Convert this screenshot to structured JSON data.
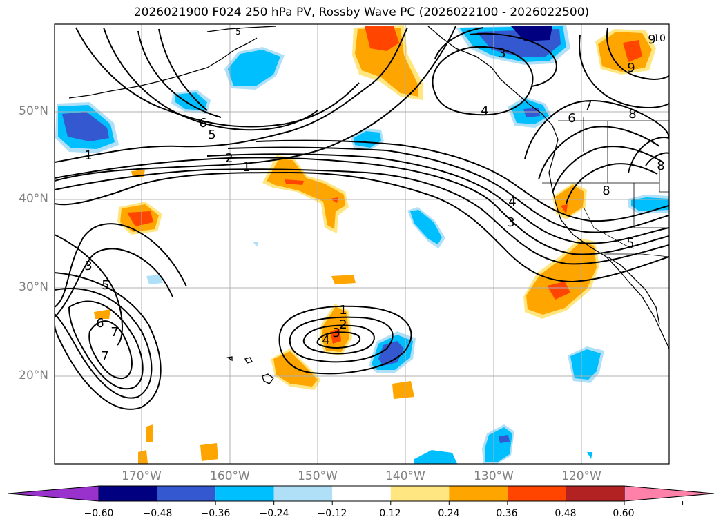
{
  "title": "2026021900 F024 250 hPa PV, Rossby Wave PC (2026022100 - 2026022500)",
  "lat_labels": [
    "50°N",
    "40°N",
    "30°N",
    "20°N"
  ],
  "lon_labels": [
    "170°W",
    "160°W",
    "150°W",
    "140°W",
    "130°W",
    "120°W"
  ],
  "contour_labels": [
    "6",
    "5",
    "2",
    "1",
    "1",
    "3",
    "5",
    "6",
    "7",
    "7",
    "1",
    "2",
    "3",
    "4",
    "3",
    "4",
    "3",
    "4",
    "5",
    "6",
    "7",
    "8",
    "9",
    "8",
    "8",
    "9",
    "10",
    "5"
  ],
  "colorbar": {
    "tick_labels": [
      "−0.60",
      "−0.48",
      "−0.36",
      "−0.24",
      "−0.12",
      "0.12",
      "0.24",
      "0.36",
      "0.48",
      "0.60"
    ],
    "colors": [
      "#9932cc",
      "#000080",
      "#3458cf",
      "#00bfff",
      "#b0e0f8",
      "#ffffff",
      "#ffe680",
      "#ffa500",
      "#ff4500",
      "#b22222",
      "#ff80a8"
    ]
  }
}
